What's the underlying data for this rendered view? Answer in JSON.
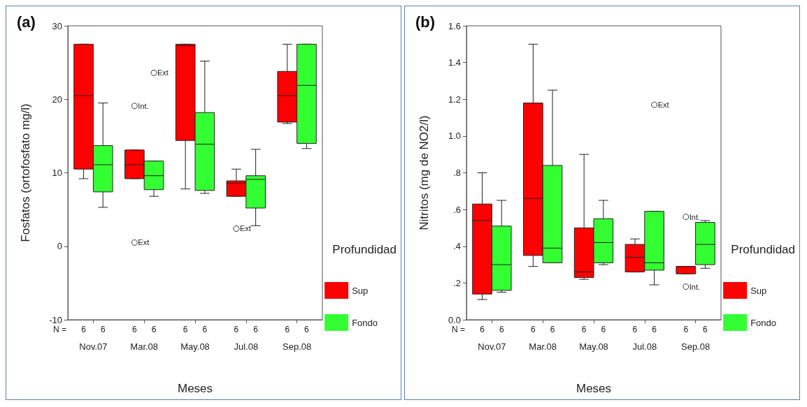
{
  "chart_data": [
    {
      "type": "box",
      "title": "(a)",
      "xlabel": "Meses",
      "ylabel": "Fosfatos (ortofosfato mg/l)",
      "legend_title": "Profundidad",
      "legend": "right",
      "grid": false,
      "marker": "circle",
      "categories": [
        "Nov.07",
        "Mar.08",
        "May.08",
        "Jul.08",
        "Sep.08"
      ],
      "ylim": [
        -10,
        30
      ],
      "yticks": [
        -10,
        0,
        10,
        20,
        30
      ],
      "series": [
        {
          "name": "Sup",
          "color": "#ff0000",
          "boxes": [
            {
              "low": 9.2,
              "q1": 10.5,
              "median": 20.5,
              "q3": 27.5,
              "high": 27.5
            },
            {
              "low": 9.2,
              "q1": 9.2,
              "median": 11.1,
              "q3": 13.1,
              "high": 13.1,
              "outliers": [
                19.1,
                0.5
              ]
            },
            {
              "low": 7.8,
              "q1": 14.4,
              "median": 27.3,
              "q3": 27.5,
              "high": 27.5
            },
            {
              "low": 6.8,
              "q1": 6.8,
              "median": 8.6,
              "q3": 8.9,
              "high": 10.5,
              "outliers": [
                2.4
              ]
            },
            {
              "low": 16.7,
              "q1": 16.9,
              "median": 20.5,
              "q3": 23.8,
              "high": 27.5
            }
          ]
        },
        {
          "name": "Fondo",
          "color": "#33ff33",
          "boxes": [
            {
              "low": 5.3,
              "q1": 7.4,
              "median": 11.1,
              "q3": 13.7,
              "high": 19.5
            },
            {
              "low": 6.8,
              "q1": 7.7,
              "median": 9.6,
              "q3": 11.6,
              "high": 11.6,
              "outliers": [
                23.6
              ]
            },
            {
              "low": 7.2,
              "q1": 7.6,
              "median": 13.9,
              "q3": 18.2,
              "high": 25.2
            },
            {
              "low": 2.8,
              "q1": 5.2,
              "median": 9.1,
              "q3": 9.6,
              "high": 13.2
            },
            {
              "low": 13.3,
              "q1": 14.0,
              "median": 21.9,
              "q3": 27.5,
              "high": 27.5
            }
          ]
        }
      ],
      "annotations": [
        "N =",
        "6",
        "6",
        "6",
        "6",
        "6",
        "6",
        "6",
        "6",
        "6",
        "6",
        "Int.",
        "Ext",
        "Ext",
        "Ext"
      ]
    },
    {
      "type": "box",
      "title": "(b)",
      "xlabel": "Meses",
      "ylabel": "Nitritos (mg de NO2/l)",
      "legend_title": "Profundidad",
      "legend": "right",
      "grid": false,
      "marker": "circle",
      "categories": [
        "Nov.07",
        "Mar.08",
        "May.08",
        "Jul.08",
        "Sep.08"
      ],
      "ylim": [
        0,
        1.6
      ],
      "yticks": [
        {
          "value": 0,
          "label": "0.0"
        },
        {
          "value": 0.2,
          "label": ".2"
        },
        {
          "value": 0.4,
          "label": ".4"
        },
        {
          "value": 0.6,
          "label": ".6"
        },
        {
          "value": 0.8,
          "label": ".8"
        },
        {
          "value": 1.0,
          "label": "1.0"
        },
        {
          "value": 1.2,
          "label": "1.2"
        },
        {
          "value": 1.4,
          "label": "1.4"
        },
        {
          "value": 1.6,
          "label": "1.6"
        }
      ],
      "series": [
        {
          "name": "Sup",
          "color": "#ff0000",
          "boxes": [
            {
              "low": 0.11,
              "q1": 0.14,
              "median": 0.54,
              "q3": 0.63,
              "high": 0.8
            },
            {
              "low": 0.29,
              "q1": 0.35,
              "median": 0.66,
              "q3": 1.18,
              "high": 1.5
            },
            {
              "low": 0.22,
              "q1": 0.23,
              "median": 0.26,
              "q3": 0.5,
              "high": 0.9
            },
            {
              "low": 0.26,
              "q1": 0.26,
              "median": 0.34,
              "q3": 0.41,
              "high": 0.44
            },
            {
              "low": 0.25,
              "q1": 0.25,
              "median": 0.29,
              "q3": 0.29,
              "high": 0.29,
              "outliers": [
                0.56,
                0.18
              ]
            }
          ]
        },
        {
          "name": "Fondo",
          "color": "#33ff33",
          "boxes": [
            {
              "low": 0.15,
              "q1": 0.16,
              "median": 0.3,
              "q3": 0.51,
              "high": 0.65
            },
            {
              "low": 0.31,
              "q1": 0.31,
              "median": 0.39,
              "q3": 0.84,
              "high": 1.25
            },
            {
              "low": 0.3,
              "q1": 0.31,
              "median": 0.42,
              "q3": 0.55,
              "high": 0.65
            },
            {
              "low": 0.19,
              "q1": 0.27,
              "median": 0.31,
              "q3": 0.59,
              "high": 0.59,
              "outliers": [
                1.17
              ]
            },
            {
              "low": 0.28,
              "q1": 0.3,
              "median": 0.41,
              "q3": 0.53,
              "high": 0.54
            }
          ]
        }
      ],
      "annotations": [
        "N =",
        "6",
        "6",
        "6",
        "6",
        "6",
        "6",
        "6",
        "6",
        "6",
        "6",
        "Int.",
        "Int.",
        "Ext"
      ]
    }
  ]
}
